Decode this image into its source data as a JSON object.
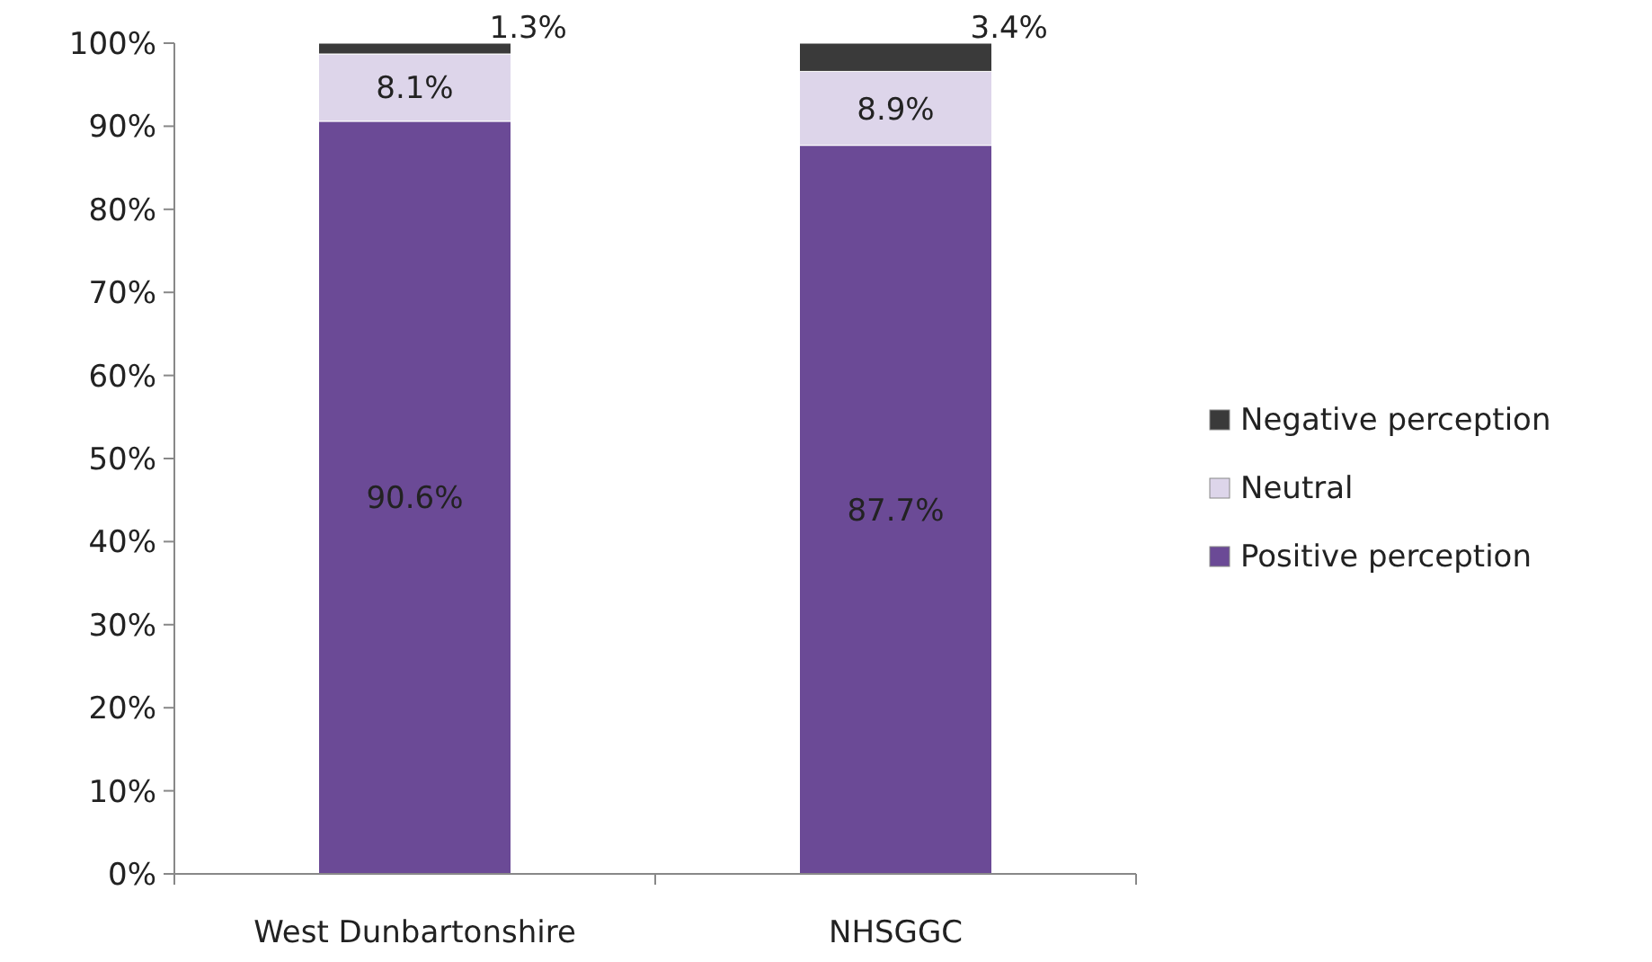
{
  "chart_data": {
    "type": "bar",
    "stacked": true,
    "categories": [
      "West Dunbartonshire",
      "NHSGGC"
    ],
    "series": [
      {
        "name": "Positive perception",
        "color": "#6b4a96",
        "values": [
          90.6,
          87.7
        ],
        "value_labels": [
          "90.6%",
          "87.7%"
        ]
      },
      {
        "name": "Neutral",
        "color": "#ddd5ea",
        "values": [
          8.1,
          8.9
        ],
        "value_labels": [
          "8.1%",
          "8.9%"
        ]
      },
      {
        "name": "Negative perception",
        "color": "#3a3a3a",
        "values": [
          1.3,
          3.4
        ],
        "value_labels": [
          "1.3%",
          "3.4%"
        ]
      }
    ],
    "ylim": [
      0,
      100
    ],
    "yticks": [
      {
        "value": 0,
        "label": "0%"
      },
      {
        "value": 10,
        "label": "10%"
      },
      {
        "value": 20,
        "label": "20%"
      },
      {
        "value": 30,
        "label": "30%"
      },
      {
        "value": 40,
        "label": "40%"
      },
      {
        "value": 50,
        "label": "50%"
      },
      {
        "value": 60,
        "label": "60%"
      },
      {
        "value": 70,
        "label": "70%"
      },
      {
        "value": 80,
        "label": "80%"
      },
      {
        "value": 90,
        "label": "90%"
      },
      {
        "value": 100,
        "label": "100%"
      }
    ],
    "legend": "right",
    "grid": false
  }
}
